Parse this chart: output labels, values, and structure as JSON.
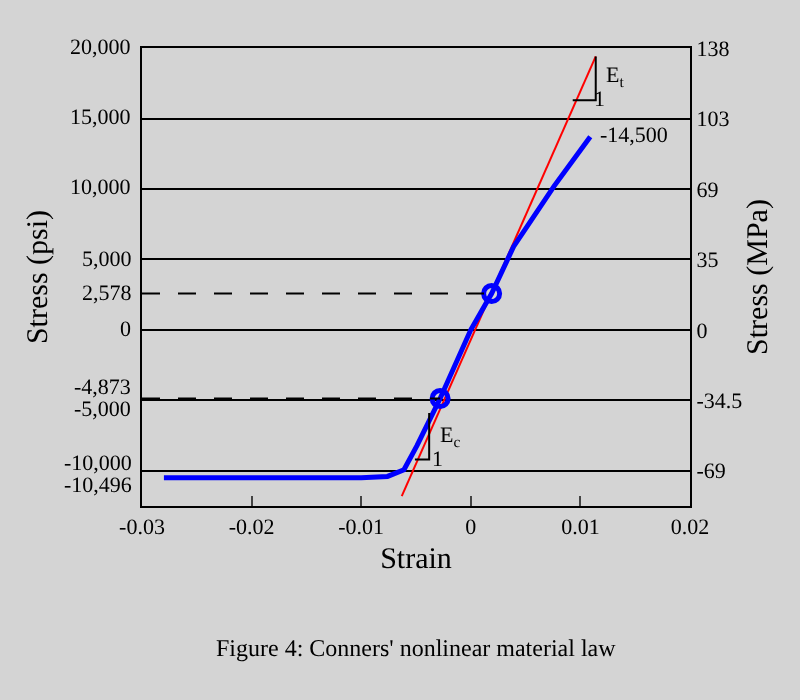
{
  "chart_data": {
    "type": "line",
    "xlabel": "Strain",
    "ylabel": "Stress (psi)",
    "y2label": "Stress (MPa)",
    "annotations": [
      {
        "text": "-14,500",
        "x": 0.0109,
        "y": 13700
      },
      {
        "text": "E$_{t}$",
        "x": 0.0114,
        "y": 18000
      },
      {
        "text": "1",
        "x": 0.0104,
        "y": 16300
      },
      {
        "text": "E$_{c}$",
        "x": -0.0038,
        "y": -7600
      },
      {
        "text": "1",
        "x": -0.0045,
        "y": -9200
      },
      "Figure 4: Conners' nonlinear material law"
    ],
    "series": [
      {
        "color": "#ff0000",
        "x": [
          -0.0063,
          0.0114
        ],
        "values": [
          -11800,
          19400
        ]
      },
      {
        "color": "#0000ff",
        "x": [
          -0.028,
          -0.02,
          -0.01,
          -0.0076,
          -0.0061,
          -0.0049,
          -0.0028,
          0,
          0.0019,
          0.0039,
          0.0076,
          0.0109
        ],
        "values": [
          -10496,
          -10496,
          -10496,
          -10400,
          -9930,
          -8200,
          -4873,
          0,
          2578,
          5900,
          10200,
          13700
        ]
      },
      {
        "type": "scatter",
        "marker": "circle",
        "color": "#0000ff",
        "x": [
          -0.0028,
          0.0019
        ],
        "values": [
          -4873,
          2578
        ]
      },
      {
        "color": "#000000",
        "line_style": "dashed",
        "x": [
          -0.03,
          0.0019
        ],
        "values": [
          2578,
          2578
        ]
      },
      {
        "color": "#000000",
        "line_style": "dashed",
        "x": [
          -0.03,
          -0.0028
        ],
        "values": [
          -4873,
          -4873
        ]
      },
      {
        "color": "#000000",
        "x": [
          0.0093,
          0.0114,
          0.0114
        ],
        "values": [
          16300,
          16300,
          19400
        ]
      },
      {
        "color": "#000000",
        "x": [
          -0.0051,
          -0.0038,
          -0.0038
        ],
        "values": [
          -9200,
          -9200,
          -5900
        ]
      }
    ],
    "xlim": [
      -0.03,
      0.02
    ],
    "xticks": [
      -0.03,
      -0.02,
      -0.01,
      0,
      0.01,
      0.02
    ],
    "ylim": [
      -12500,
      20000
    ],
    "yticks": [
      {
        "value": 20000,
        "label": "20,000"
      },
      {
        "value": 15000,
        "label": "15,000"
      },
      {
        "value": 10000,
        "label": "10,000"
      },
      {
        "value": 5000,
        "label": "5,000"
      },
      {
        "value": 2578,
        "label": "2,578"
      },
      0,
      {
        "value": -4873,
        "label": "-4,873"
      },
      {
        "value": -5000,
        "label": "-5,000"
      },
      {
        "value": -10000,
        "label": "-10,000"
      },
      {
        "value": -10496,
        "label": "-10,496"
      }
    ],
    "y2lim": [
      -86.2,
      137.9
    ],
    "y2ticks": [
      {
        "value": 137.9,
        "label": "138"
      },
      {
        "value": 103.4,
        "label": "103"
      },
      {
        "value": 68.9,
        "label": "69"
      },
      {
        "value": 34.5,
        "label": "35"
      },
      0,
      -34.5,
      {
        "value": -68.9,
        "label": "-69"
      }
    ],
    "grid": "y",
    "line_style": "solid"
  }
}
